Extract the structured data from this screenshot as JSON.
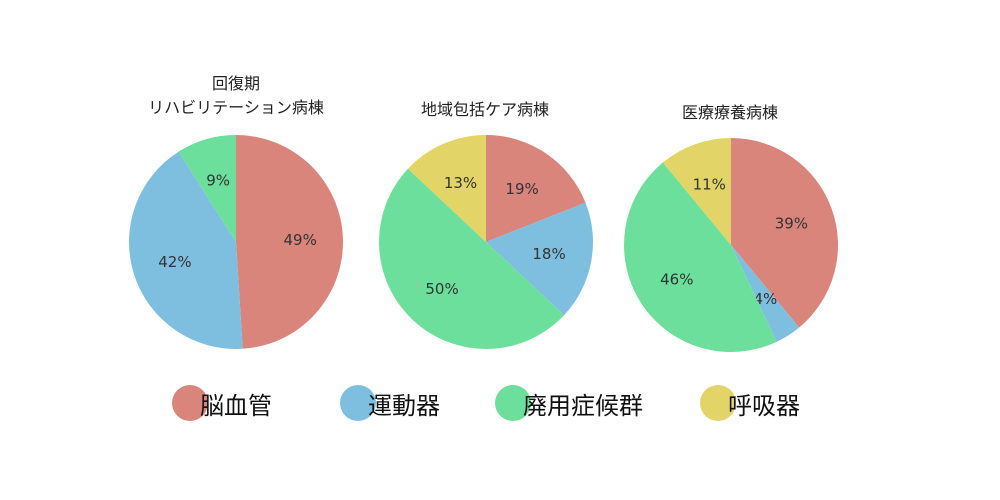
{
  "colors": {
    "脳血管": "#d9857c",
    "運動器": "#7ebfe0",
    "廃用症候群": "#6ddf9c",
    "呼吸器": "#e2d466"
  },
  "legend": {
    "items": [
      {
        "label": "脳血管",
        "color": "#d9857c"
      },
      {
        "label": "運動器",
        "color": "#7ebfe0"
      },
      {
        "label": "廃用症候群",
        "color": "#6ddf9c"
      },
      {
        "label": "呼吸器",
        "color": "#e2d466"
      }
    ]
  },
  "chart_data": [
    {
      "type": "pie",
      "title_lines": [
        "回復期",
        "リハビリテーション病棟"
      ],
      "categories": [
        "脳血管",
        "運動器",
        "廃用症候群",
        "呼吸器"
      ],
      "values": [
        49,
        42,
        9,
        0
      ],
      "labels": [
        "49%",
        "42%",
        "9%",
        ""
      ],
      "start_angle": "12 o'clock",
      "direction": "clockwise"
    },
    {
      "type": "pie",
      "title_lines": [
        "地域包括ケア病棟"
      ],
      "categories": [
        "脳血管",
        "運動器",
        "廃用症候群",
        "呼吸器"
      ],
      "values": [
        19,
        18,
        50,
        13
      ],
      "labels": [
        "19%",
        "18%",
        "50%",
        "13%"
      ],
      "start_angle": "12 o'clock",
      "direction": "clockwise"
    },
    {
      "type": "pie",
      "title_lines": [
        "医療療養病棟"
      ],
      "categories": [
        "脳血管",
        "運動器",
        "廃用症候群",
        "呼吸器"
      ],
      "values": [
        39,
        4,
        46,
        11
      ],
      "labels": [
        "39%",
        "4%",
        "46%",
        "11%"
      ],
      "start_angle": "12 o'clock",
      "direction": "clockwise"
    }
  ]
}
